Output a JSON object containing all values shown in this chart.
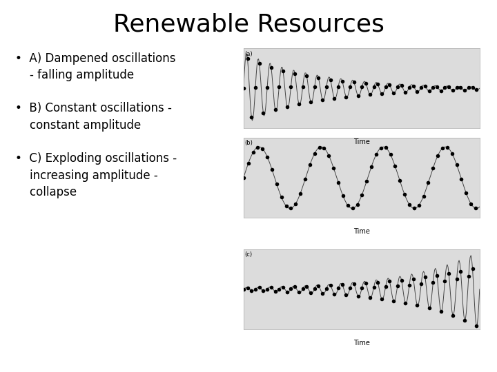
{
  "title": "Renewable Resources",
  "title_fontsize": 26,
  "bullet_fontsize": 12,
  "panel_labels": [
    "(a)",
    "(b)",
    "(c)"
  ],
  "panel_bg": "#dcdcdc",
  "time_label": "Time",
  "line_color": "#444444",
  "background_color": "#ffffff",
  "n_points": 300,
  "dampened_freq": 20,
  "dampened_decay": 3.2,
  "constant_freq": 3.8,
  "constant_amp": 1.0,
  "exploding_freq": 20,
  "exploding_growth": 3.2,
  "marker_step_a": 5,
  "marker_step_b": 6,
  "marker_step_c": 5,
  "marker_size": 4
}
